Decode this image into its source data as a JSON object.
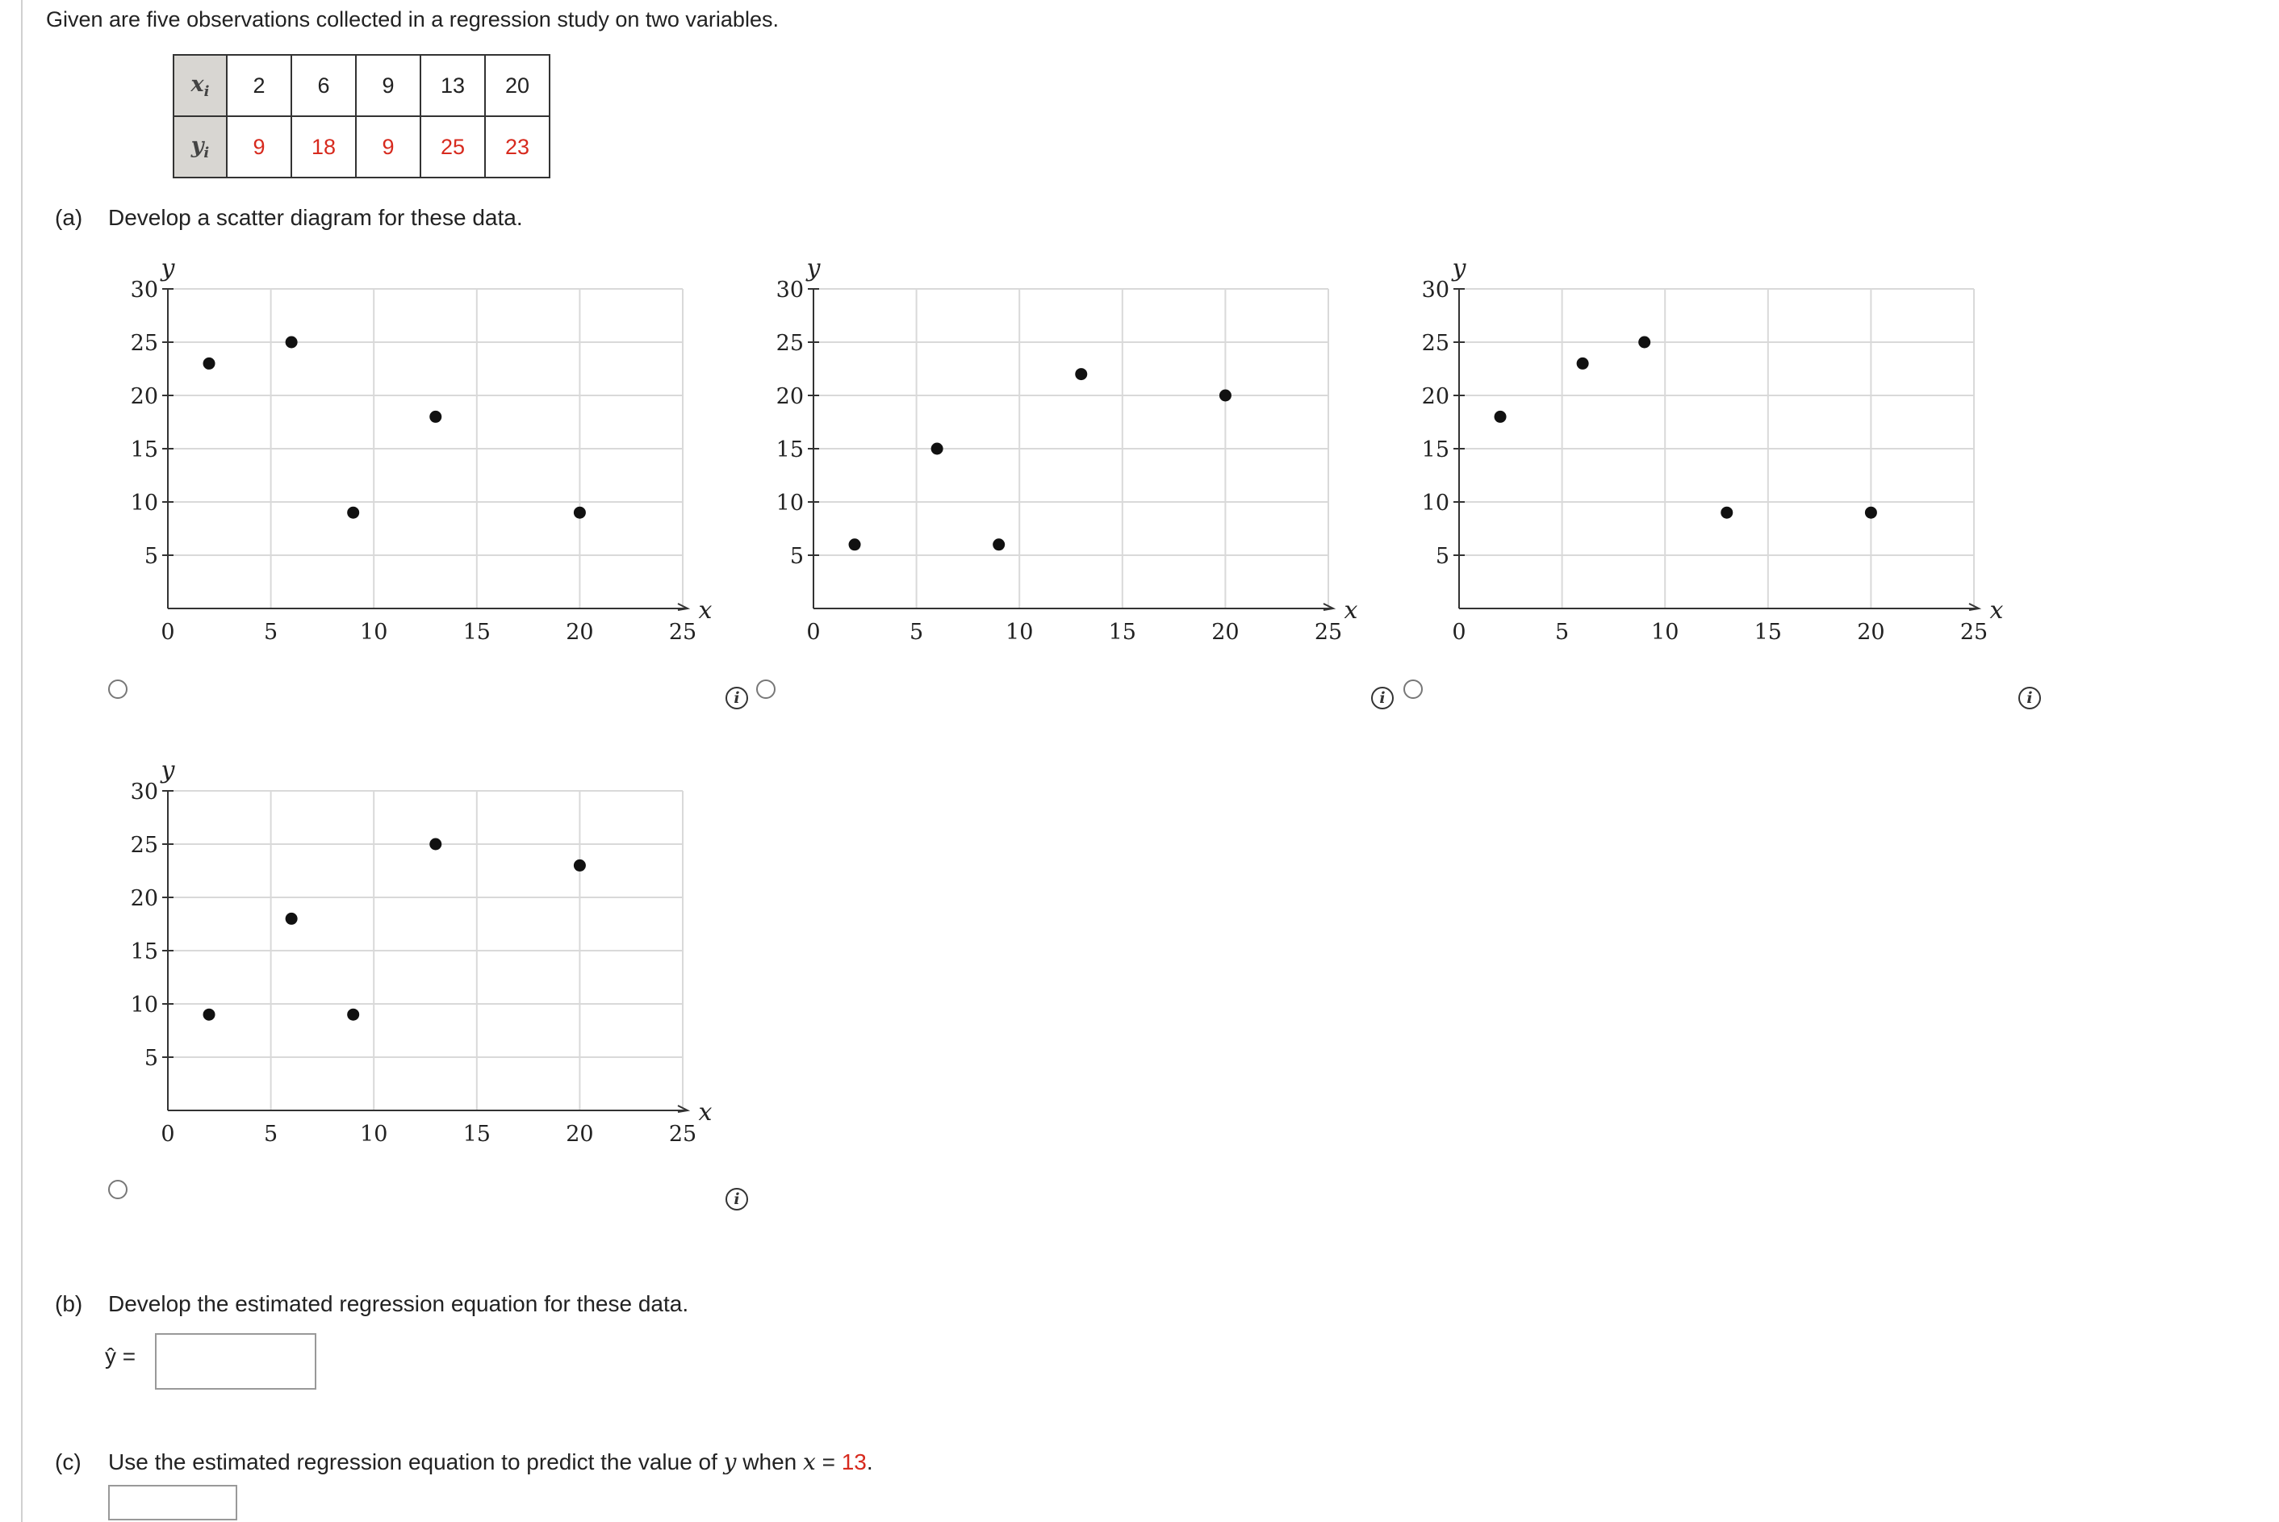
{
  "intro": "Given are five observations collected in a regression study on two variables.",
  "table": {
    "x_header": "x",
    "x_sub": "i",
    "y_header": "y",
    "y_sub": "i",
    "x_values": [
      "2",
      "6",
      "9",
      "13",
      "20"
    ],
    "y_values": [
      "9",
      "18",
      "9",
      "25",
      "23"
    ]
  },
  "part_a": {
    "letter": "(a)",
    "text": "Develop a scatter diagram for these data."
  },
  "part_b": {
    "letter": "(b)",
    "text": "Develop the estimated regression equation for these data.",
    "yhat_label": "ŷ =",
    "input_value": ""
  },
  "part_c": {
    "letter": "(c)",
    "text_before": "Use the estimated regression equation to predict the value of ",
    "y_var": "y",
    "text_mid": " when ",
    "x_var": "x",
    "text_eq": " = ",
    "x_value": "13",
    "text_end": ".",
    "input_value": ""
  },
  "info_glyph": "i",
  "chart_data": [
    {
      "type": "scatter",
      "option": 1,
      "xlabel": "x",
      "ylabel": "y",
      "xlim": [
        0,
        25
      ],
      "ylim": [
        0,
        30
      ],
      "xticks": [
        0,
        5,
        10,
        15,
        20,
        25
      ],
      "yticks": [
        5,
        10,
        15,
        20,
        25,
        30
      ],
      "points": [
        [
          2,
          23
        ],
        [
          6,
          25
        ],
        [
          9,
          9
        ],
        [
          13,
          18
        ],
        [
          20,
          9
        ]
      ],
      "grid": true
    },
    {
      "type": "scatter",
      "option": 2,
      "xlabel": "x",
      "ylabel": "y",
      "xlim": [
        0,
        25
      ],
      "ylim": [
        0,
        30
      ],
      "xticks": [
        0,
        5,
        10,
        15,
        20,
        25
      ],
      "yticks": [
        5,
        10,
        15,
        20,
        25,
        30
      ],
      "points": [
        [
          2,
          6
        ],
        [
          6,
          15
        ],
        [
          9,
          6
        ],
        [
          13,
          22
        ],
        [
          20,
          20
        ]
      ],
      "grid": true
    },
    {
      "type": "scatter",
      "option": 3,
      "xlabel": "x",
      "ylabel": "y",
      "xlim": [
        0,
        25
      ],
      "ylim": [
        0,
        30
      ],
      "xticks": [
        0,
        5,
        10,
        15,
        20,
        25
      ],
      "yticks": [
        5,
        10,
        15,
        20,
        25,
        30
      ],
      "points": [
        [
          2,
          18
        ],
        [
          6,
          23
        ],
        [
          9,
          25
        ],
        [
          13,
          9
        ],
        [
          20,
          9
        ]
      ],
      "grid": true
    },
    {
      "type": "scatter",
      "option": 4,
      "xlabel": "x",
      "ylabel": "y",
      "xlim": [
        0,
        25
      ],
      "ylim": [
        0,
        30
      ],
      "xticks": [
        0,
        5,
        10,
        15,
        20,
        25
      ],
      "yticks": [
        5,
        10,
        15,
        20,
        25,
        30
      ],
      "points": [
        [
          2,
          9
        ],
        [
          6,
          18
        ],
        [
          9,
          9
        ],
        [
          13,
          25
        ],
        [
          20,
          23
        ]
      ],
      "grid": true
    }
  ]
}
